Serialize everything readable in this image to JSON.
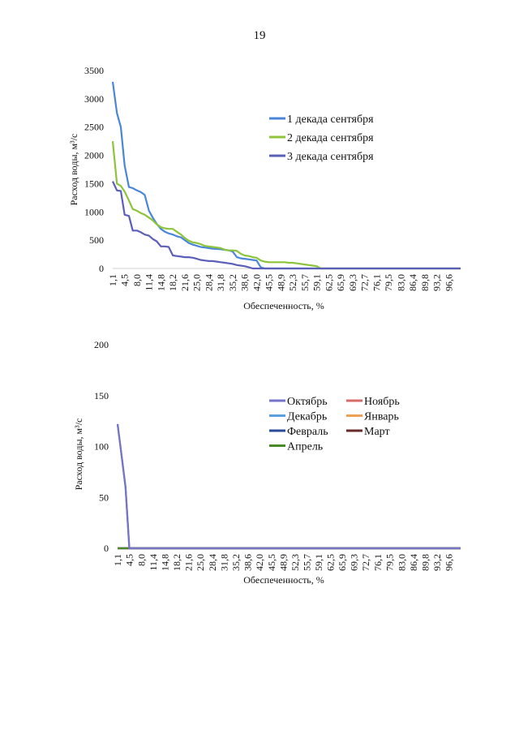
{
  "page": {
    "number": "19"
  },
  "chart_data": [
    {
      "type": "line",
      "ylabel": "Расход воды, м³/с",
      "xlabel": "Обеспеченность, %",
      "ylim": [
        0,
        3500
      ],
      "yticks": [
        0,
        500,
        1000,
        1500,
        2000,
        2500,
        3000,
        3500
      ],
      "xtick_labels": [
        "1,1",
        "4,5",
        "8,0",
        "11,4",
        "14,8",
        "18,2",
        "21,6",
        "25,0",
        "28,4",
        "31,8",
        "35,2",
        "38,6",
        "42,0",
        "45,5",
        "48,9",
        "52,3",
        "55,7",
        "59,1",
        "62,5",
        "65,9",
        "69,3",
        "72,7",
        "76,1",
        "79,5",
        "83,0",
        "86,4",
        "89,8",
        "93,2",
        "96,6"
      ],
      "xlim": [
        1.1,
        100
      ],
      "legend_position": "right",
      "series": [
        {
          "name": "1 декада сентября",
          "color": "#4a86d8",
          "x": [
            1.1,
            2.3,
            3.4,
            4.5,
            5.7,
            6.8,
            8.0,
            9.1,
            10.2,
            11.4,
            12.5,
            13.6,
            14.8,
            15.9,
            17.0,
            18.2,
            19.3,
            20.5,
            21.6,
            22.7,
            23.9,
            25.0,
            26.1,
            27.3,
            28.4,
            29.5,
            30.7,
            31.8,
            33.0,
            34.1,
            35.2,
            36.4,
            37.5,
            38.6,
            39.8,
            40.9,
            42.0,
            43.2,
            44.3,
            45.5,
            100
          ],
          "y": [
            3300,
            2750,
            2500,
            1820,
            1440,
            1420,
            1380,
            1350,
            1300,
            1020,
            900,
            790,
            700,
            650,
            620,
            600,
            570,
            550,
            500,
            450,
            420,
            400,
            380,
            370,
            360,
            350,
            345,
            340,
            330,
            320,
            300,
            200,
            180,
            170,
            160,
            150,
            140,
            20,
            0,
            0,
            0
          ]
        },
        {
          "name": "2 декада сентября",
          "color": "#8cc43c",
          "x": [
            1.1,
            2.3,
            3.4,
            4.5,
            5.7,
            6.8,
            8.0,
            9.1,
            10.2,
            11.4,
            12.5,
            13.6,
            14.8,
            15.9,
            17.0,
            18.2,
            19.3,
            20.5,
            21.6,
            22.7,
            23.9,
            25.0,
            26.1,
            27.3,
            28.4,
            29.5,
            30.7,
            31.8,
            33.0,
            34.1,
            35.2,
            36.4,
            37.5,
            38.6,
            39.8,
            40.9,
            42.0,
            43.2,
            44.3,
            45.5,
            46.6,
            47.7,
            48.9,
            50.0,
            51.1,
            52.3,
            53.4,
            54.5,
            55.7,
            56.8,
            58.0,
            59.1,
            60.2,
            100
          ],
          "y": [
            2250,
            1500,
            1460,
            1360,
            1200,
            1050,
            1020,
            980,
            950,
            900,
            850,
            780,
            730,
            710,
            700,
            700,
            650,
            600,
            540,
            490,
            460,
            450,
            430,
            400,
            390,
            380,
            370,
            360,
            330,
            320,
            320,
            310,
            260,
            230,
            220,
            200,
            190,
            140,
            120,
            110,
            110,
            110,
            110,
            110,
            100,
            100,
            90,
            80,
            70,
            60,
            50,
            40,
            0,
            0
          ]
        },
        {
          "name": "3 декада сентября",
          "color": "#5b5fb8",
          "x": [
            1.1,
            2.3,
            3.4,
            4.5,
            5.7,
            6.8,
            8.0,
            9.1,
            10.2,
            11.4,
            12.5,
            13.6,
            14.8,
            15.9,
            17.0,
            18.2,
            19.3,
            20.5,
            21.6,
            22.7,
            23.9,
            25.0,
            26.1,
            27.3,
            28.4,
            29.5,
            30.7,
            31.8,
            33.0,
            34.1,
            35.2,
            36.4,
            37.5,
            38.6,
            39.8,
            40.9,
            42.0,
            43.2,
            100
          ],
          "y": [
            1540,
            1380,
            1370,
            950,
            930,
            670,
            670,
            640,
            600,
            580,
            520,
            480,
            390,
            390,
            380,
            230,
            220,
            210,
            200,
            200,
            190,
            170,
            150,
            140,
            130,
            130,
            120,
            110,
            100,
            90,
            80,
            60,
            50,
            40,
            20,
            0,
            0,
            0,
            0
          ]
        }
      ]
    },
    {
      "type": "line",
      "ylabel": "Расход воды, м³/с",
      "xlabel": "Обеспеченность, %",
      "ylim": [
        0,
        200
      ],
      "yticks": [
        0,
        50,
        100,
        150,
        200
      ],
      "xtick_labels": [
        "1,1",
        "4,5",
        "8,0",
        "11,4",
        "14,8",
        "18,2",
        "21,6",
        "25,0",
        "28,4",
        "31,8",
        "35,2",
        "38,6",
        "42,0",
        "45,5",
        "48,9",
        "52,3",
        "55,7",
        "59,1",
        "62,5",
        "65,9",
        "69,3",
        "72,7",
        "76,1",
        "79,5",
        "83,0",
        "86,4",
        "89,8",
        "93,2",
        "96,6"
      ],
      "xlim": [
        1.1,
        100
      ],
      "legend_position": "right",
      "series": [
        {
          "name": "Октябрь",
          "color": "#7474c8",
          "x": [
            1.1,
            2.3,
            3.4,
            4.5,
            5.7,
            100
          ],
          "y": [
            122,
            90,
            60,
            0,
            0,
            0
          ]
        },
        {
          "name": "Ноябрь",
          "color": "#d86a6a",
          "x": [
            1.1,
            100
          ],
          "y": [
            0,
            0
          ]
        },
        {
          "name": "Декабрь",
          "color": "#5aa0e0",
          "x": [
            1.1,
            100
          ],
          "y": [
            0,
            0
          ]
        },
        {
          "name": "Январь",
          "color": "#f0a050",
          "x": [
            1.1,
            100
          ],
          "y": [
            0,
            0
          ]
        },
        {
          "name": "Февраль",
          "color": "#2a4a9a",
          "x": [
            1.1,
            100
          ],
          "y": [
            0,
            0
          ]
        },
        {
          "name": "Март",
          "color": "#6a2a2a",
          "x": [
            1.1,
            100
          ],
          "y": [
            0,
            0
          ]
        },
        {
          "name": "Апрель",
          "color": "#4a8a2a",
          "x": [
            1.1,
            100
          ],
          "y": [
            0,
            0
          ]
        }
      ]
    }
  ]
}
